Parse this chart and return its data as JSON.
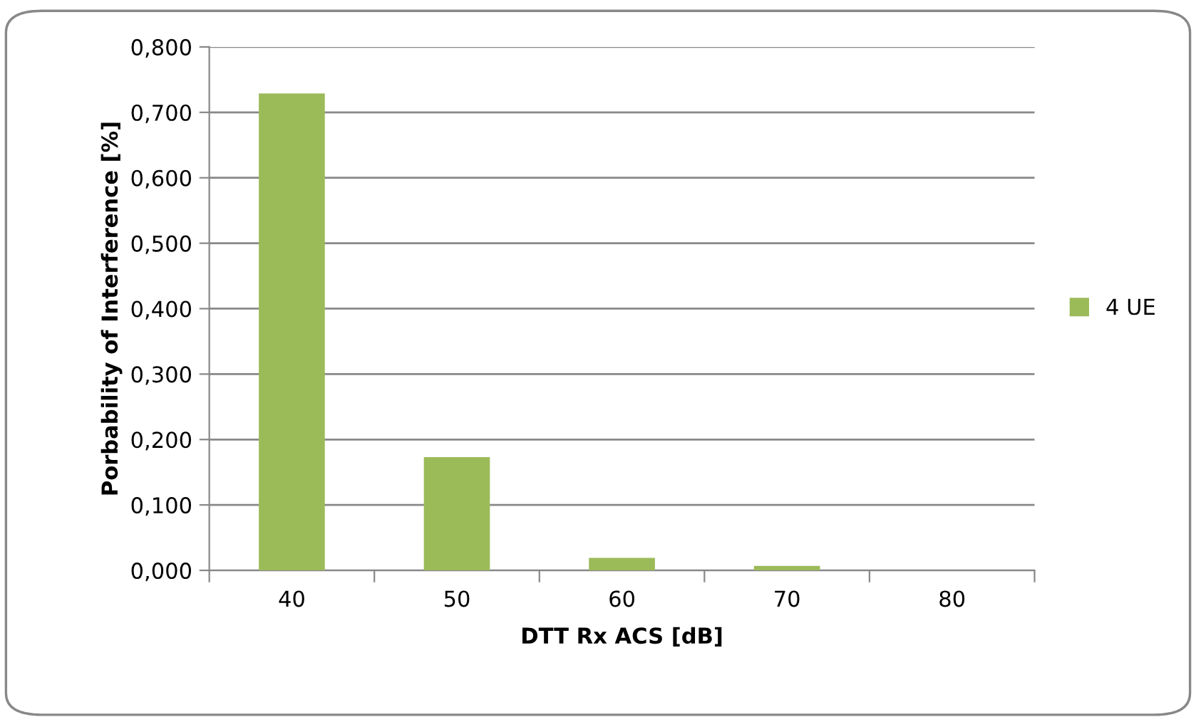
{
  "chart_data": {
    "type": "bar",
    "xlabel": "DTT Rx ACS [dB]",
    "ylabel": "Porbability of Interference [%]",
    "categories": [
      "40",
      "50",
      "60",
      "70",
      "80"
    ],
    "series": [
      {
        "name": "4 UE",
        "color": "#9bbb59",
        "values": [
          0.729,
          0.173,
          0.019,
          0.007,
          0
        ]
      }
    ],
    "ylim": [
      0,
      0.8
    ],
    "yticks": [
      {
        "value": 0,
        "label": "0,000"
      },
      {
        "value": 0.1,
        "label": "0,100"
      },
      {
        "value": 0.2,
        "label": "0,200"
      },
      {
        "value": 0.3,
        "label": "0,300"
      },
      {
        "value": 0.4,
        "label": "0,400"
      },
      {
        "value": 0.5,
        "label": "0,500"
      },
      {
        "value": 0.6,
        "label": "0,600"
      },
      {
        "value": 0.7,
        "label": "0,700"
      },
      {
        "value": 0.8,
        "label": "0,800"
      }
    ],
    "grid": "y",
    "legend": "right"
  }
}
